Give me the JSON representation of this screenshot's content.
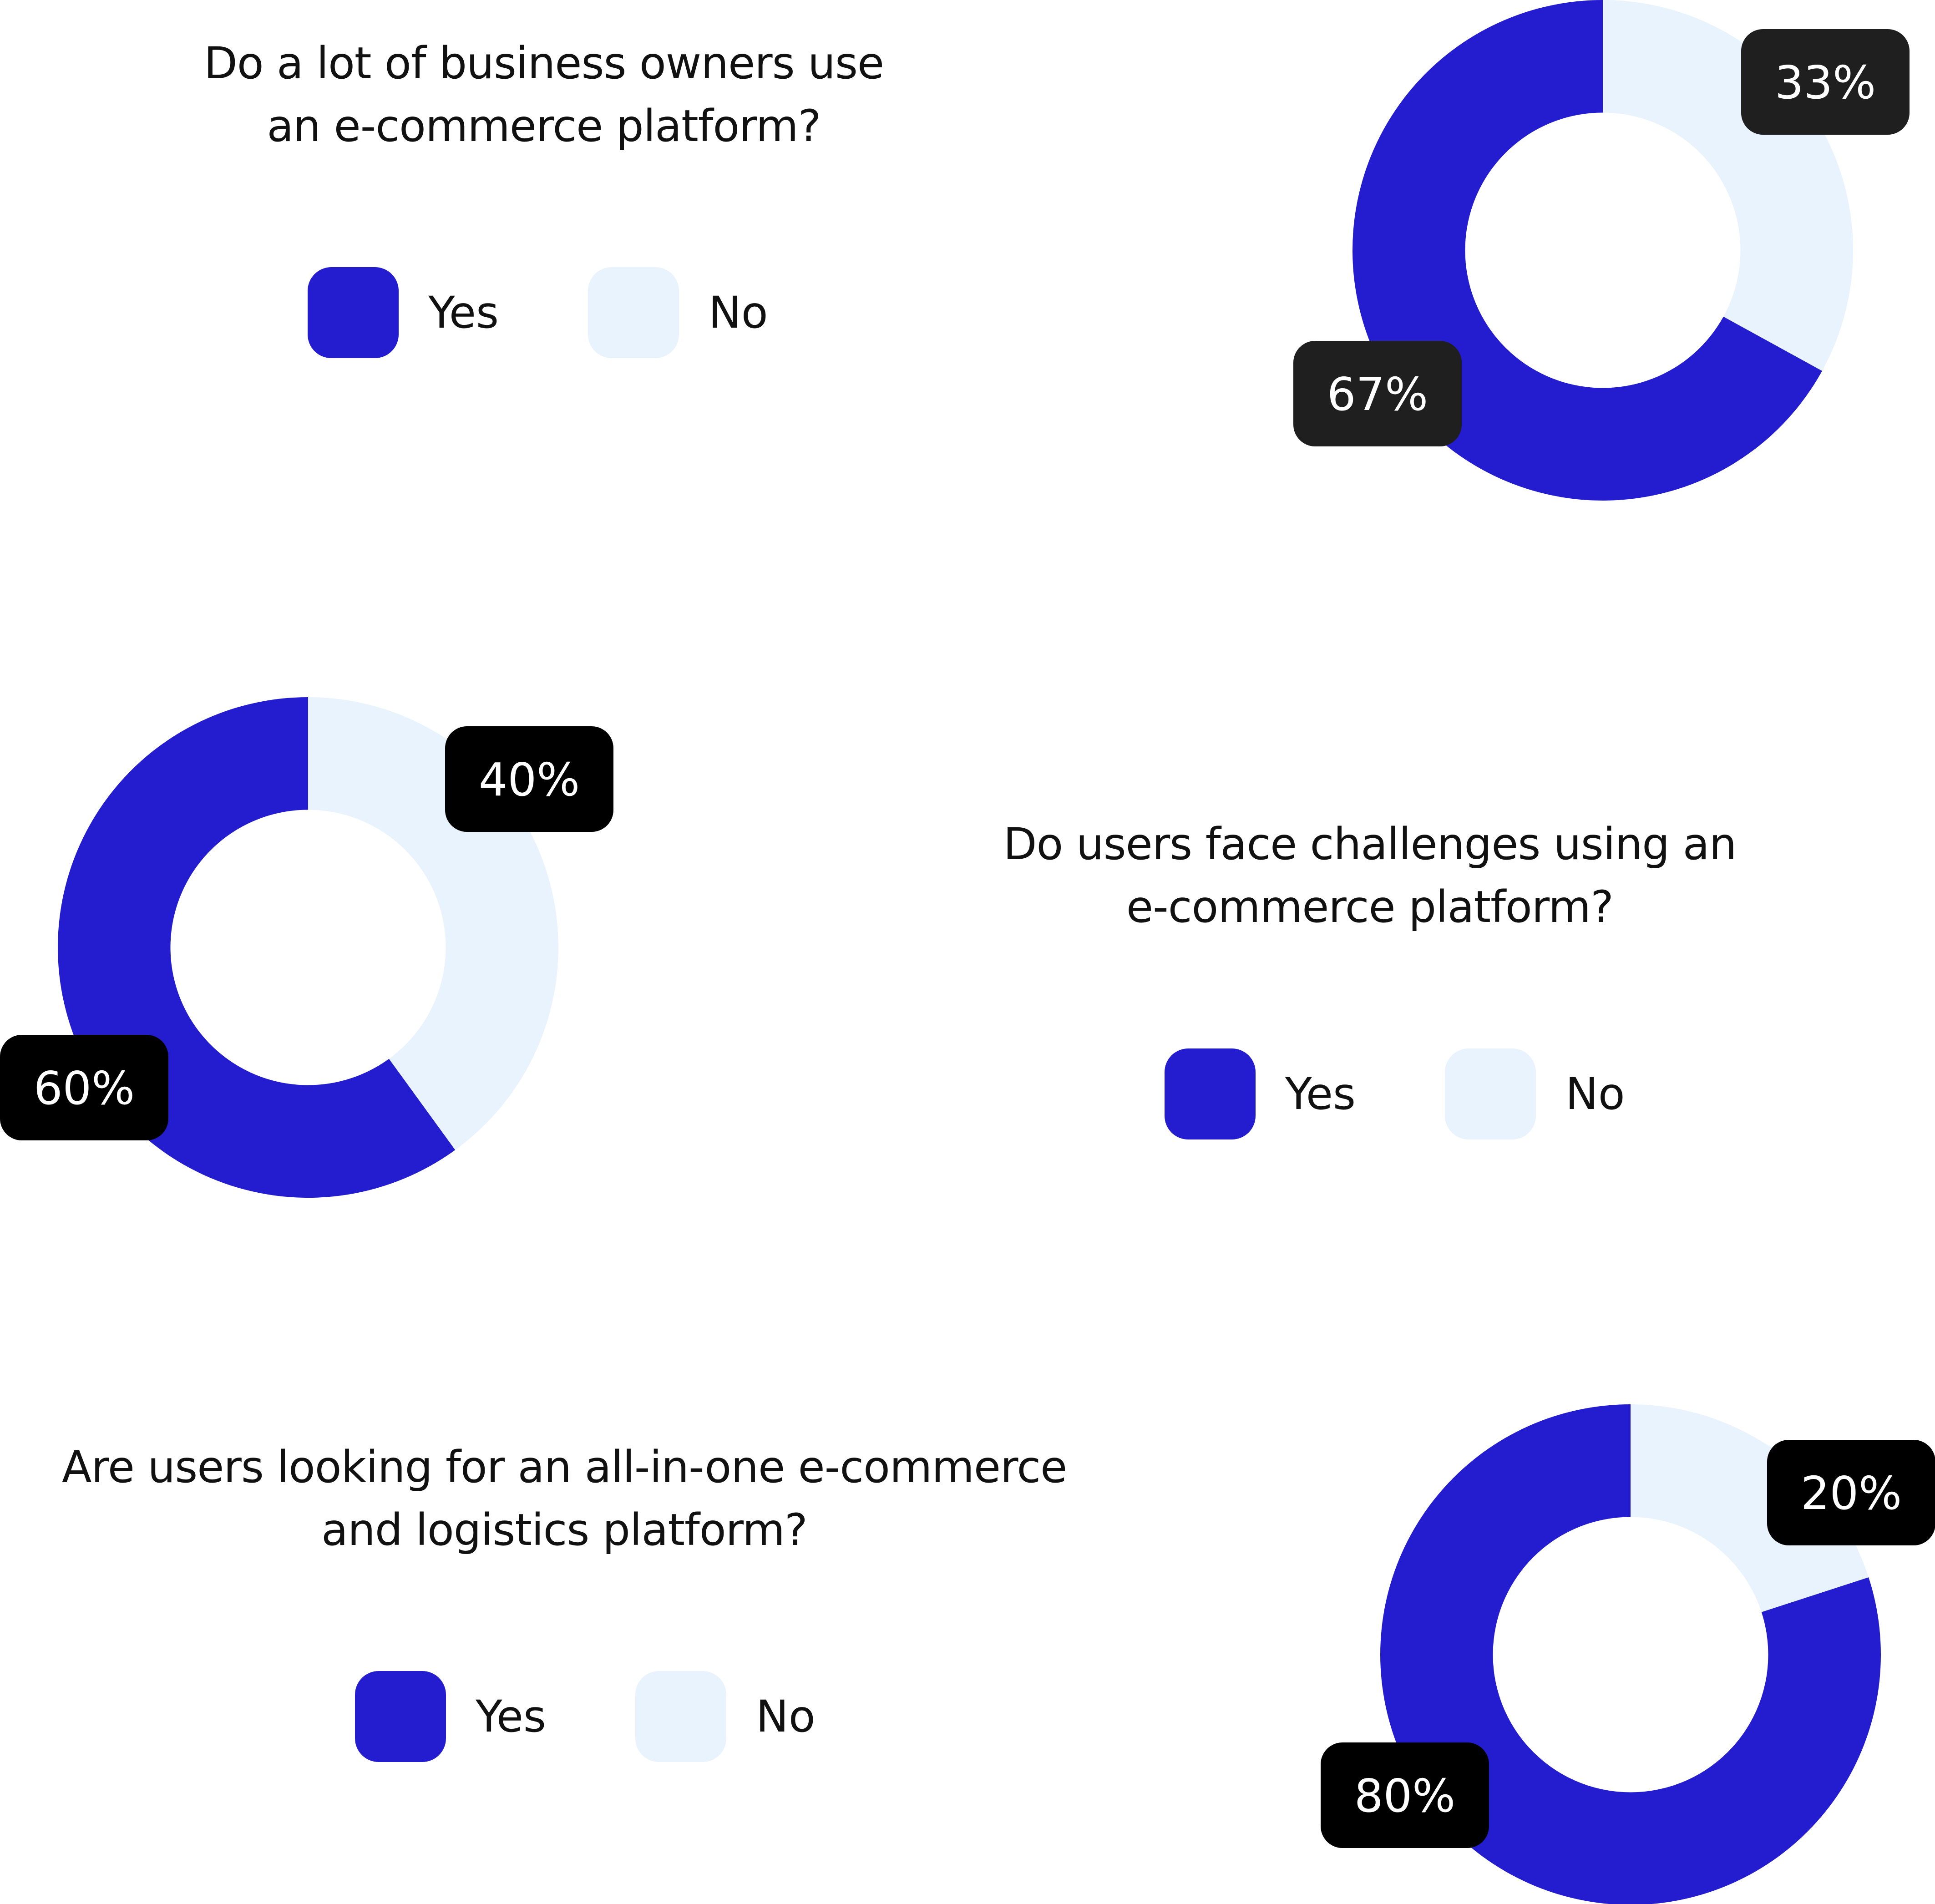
{
  "colors": {
    "yes": "#231dcf",
    "no": "#e8f3fd",
    "label_bg_dark": "#1f1f1f",
    "label_bg_black": "#000000",
    "text": "#111111"
  },
  "legend": {
    "yes_label": "Yes",
    "no_label": "No"
  },
  "chart_data": [
    {
      "type": "pie",
      "variant": "donut",
      "title_lines": [
        "Do a lot of business owners use",
        "an e-commerce platform?"
      ],
      "categories": [
        "Yes",
        "No"
      ],
      "values": [
        67,
        33
      ],
      "data_labels": [
        "67%",
        "33%"
      ],
      "legend_placement": "below-title"
    },
    {
      "type": "pie",
      "variant": "donut",
      "title_lines": [
        "Do users face challenges using an",
        "e-commerce platform?"
      ],
      "categories": [
        "Yes",
        "No"
      ],
      "values": [
        60,
        40
      ],
      "data_labels": [
        "60%",
        "40%"
      ],
      "legend_placement": "below-title"
    },
    {
      "type": "pie",
      "variant": "donut",
      "title_lines": [
        "Are users looking for an all-in-one e-commerce",
        "and logistics platform?"
      ],
      "categories": [
        "Yes",
        "No"
      ],
      "values": [
        80,
        20
      ],
      "data_labels": [
        "80%",
        "20%"
      ],
      "legend_placement": "below-title"
    }
  ]
}
